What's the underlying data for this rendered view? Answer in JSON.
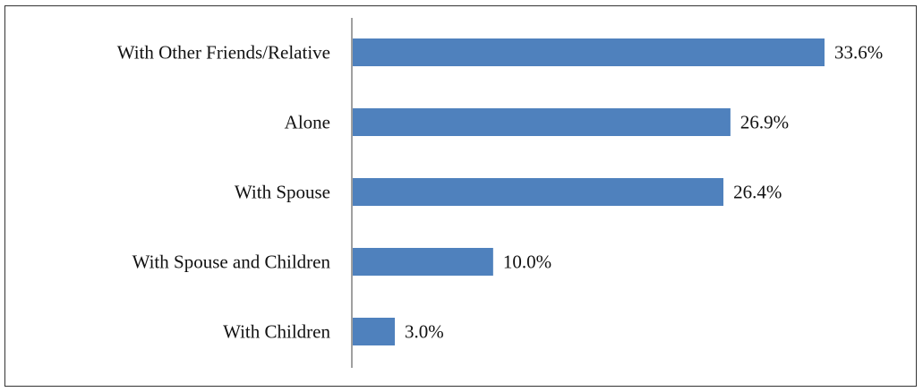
{
  "chart_data": {
    "type": "bar",
    "orientation": "horizontal",
    "categories": [
      "With Other Friends/Relative",
      "Alone",
      "With Spouse",
      "With Spouse and Children",
      "With Children"
    ],
    "values": [
      33.6,
      26.9,
      26.4,
      10.0,
      3.0
    ],
    "value_labels": [
      "33.6%",
      "26.9%",
      "26.4%",
      "10.0%",
      "3.0%"
    ],
    "title": "",
    "xlabel": "",
    "ylabel": "",
    "xlim": [
      0,
      40
    ],
    "grid": false,
    "legend": "none",
    "bar_color": "#4F81BD",
    "axis_color": "#808080"
  }
}
